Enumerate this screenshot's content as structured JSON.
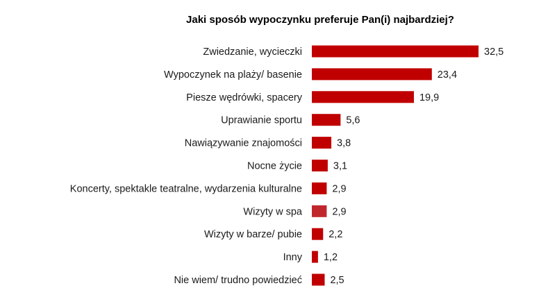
{
  "chart_data": {
    "type": "bar",
    "orientation": "horizontal",
    "title": "Jaki sposób wypoczynku preferuje Pan(i) najbardziej?",
    "xlabel": "",
    "ylabel": "",
    "grid": false,
    "xlim": [
      0,
      32.5
    ],
    "categories": [
      "Zwiedzanie, wycieczki",
      "Wypoczynek na plaży/ basenie",
      "Piesze wędrówki, spacery",
      "Uprawianie sportu",
      "Nawiązywanie znajomości",
      "Nocne życie",
      "Koncerty, spektakle teatralne, wydarzenia kulturalne",
      "Wizyty w spa",
      "Wizyty w barze/ pubie",
      "Inny",
      "Nie wiem/ trudno powiedzieć"
    ],
    "values": [
      32.5,
      23.4,
      19.9,
      5.6,
      3.8,
      3.1,
      2.9,
      2.9,
      2.2,
      1.2,
      2.5
    ],
    "value_labels": [
      "32,5",
      "23,4",
      "19,9",
      "5,6",
      "3,8",
      "3,1",
      "2,9",
      "2,9",
      "2,2",
      "1,2",
      "2,5"
    ],
    "bar_color": "#c00000",
    "highlight_color": "#c0272d"
  }
}
